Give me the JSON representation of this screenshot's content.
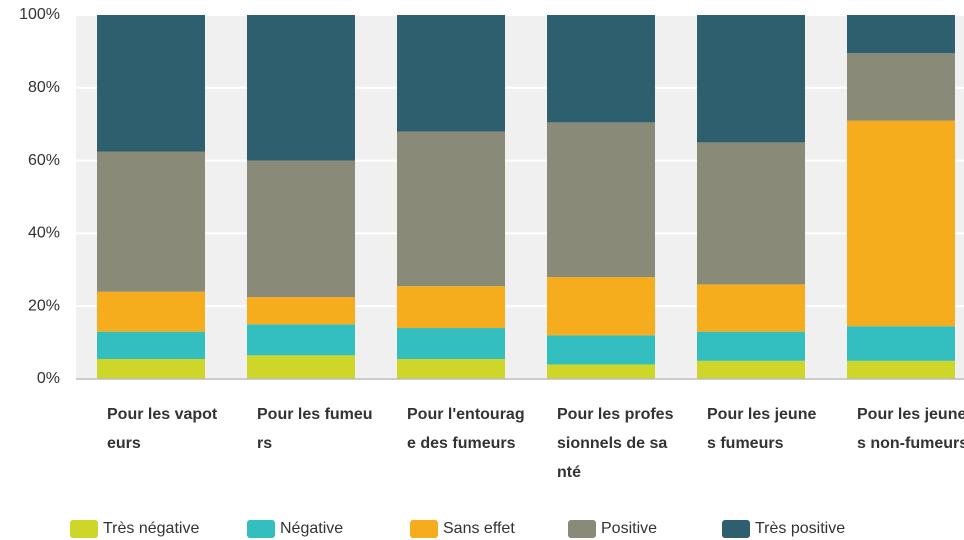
{
  "chart_data": {
    "type": "stacked_bar",
    "categories": [
      "Pour les vapoteurs",
      "Pour les fumeurs",
      "Pour l'entourage des fumeurs",
      "Pour les professionnels de santé",
      "Pour les jeunes fumeurs",
      "Pour les jeunes non-fumeurs"
    ],
    "series": [
      {
        "name": "Très négative",
        "color": "#cdd629",
        "values": [
          5.5,
          6.5,
          5.5,
          4,
          5,
          5
        ]
      },
      {
        "name": "Négative",
        "color": "#33bfc0",
        "values": [
          7.5,
          8.5,
          8.5,
          8,
          8,
          9.5
        ]
      },
      {
        "name": "Sans effet",
        "color": "#f5ac1d",
        "values": [
          11,
          7.5,
          11.5,
          16,
          13,
          56.5
        ]
      },
      {
        "name": "Positive",
        "color": "#8a8a78",
        "values": [
          38.5,
          37.5,
          42.5,
          42.5,
          39,
          18.5
        ]
      },
      {
        "name": "Très positive",
        "color": "#2e5f6e",
        "values": [
          37.5,
          40,
          32,
          29.5,
          35,
          10.5
        ]
      }
    ],
    "ylim": [
      0,
      100
    ],
    "yticks": [
      {
        "value": 0,
        "label": "0%"
      },
      {
        "value": 20,
        "label": "20%"
      },
      {
        "value": 40,
        "label": "40%"
      },
      {
        "value": 60,
        "label": "60%"
      },
      {
        "value": 80,
        "label": "80%"
      },
      {
        "value": 100,
        "label": "100%"
      }
    ],
    "grid": true
  }
}
